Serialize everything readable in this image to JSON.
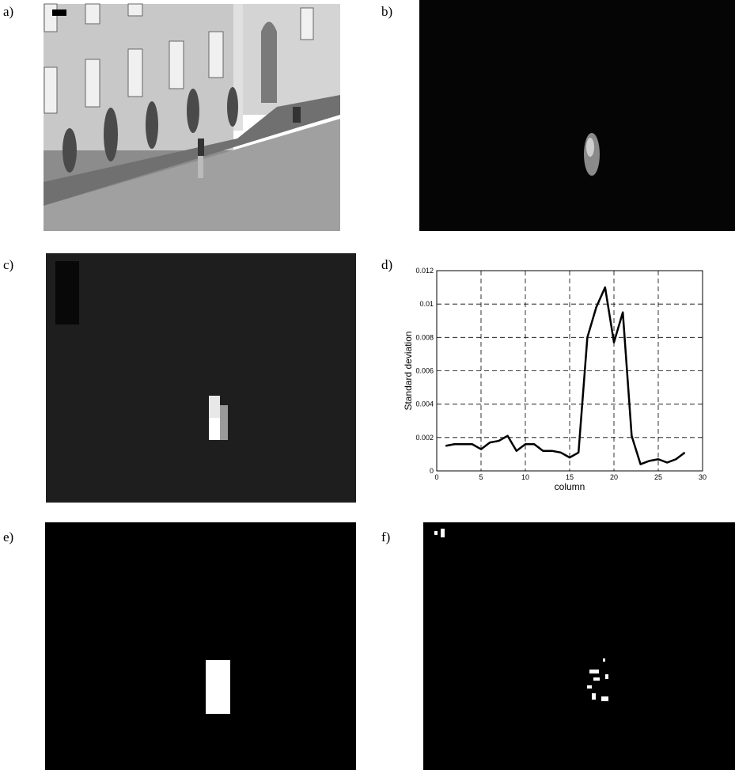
{
  "panels": {
    "labels": [
      "a)",
      "b)",
      "c)",
      "d)",
      "e)",
      "f)"
    ]
  },
  "chart_data": {
    "type": "line",
    "xlabel": "column",
    "ylabel": "Standard deviation",
    "x": [
      1,
      2,
      3,
      4,
      5,
      6,
      7,
      8,
      9,
      10,
      11,
      12,
      13,
      14,
      15,
      16,
      17,
      18,
      19,
      20,
      21,
      22,
      23,
      24,
      25,
      26,
      27,
      28
    ],
    "series": [
      {
        "name": null,
        "color": "#000000",
        "values": [
          0.0015,
          0.0016,
          0.0016,
          0.0016,
          0.0013,
          0.0017,
          0.0018,
          0.0021,
          0.0012,
          0.0016,
          0.0016,
          0.0012,
          0.0012,
          0.0011,
          0.0008,
          0.0011,
          0.008,
          0.0098,
          0.011,
          0.0077,
          0.0095,
          0.0021,
          0.0004,
          0.0006,
          0.0007,
          0.0005,
          0.0007,
          0.0011
        ]
      }
    ],
    "xlim": [
      0,
      30
    ],
    "xticks": [
      0,
      5,
      10,
      15,
      20,
      25,
      30
    ],
    "ylim": [
      0,
      0.012
    ],
    "yticks": [
      0,
      0.002,
      0.004,
      0.006,
      0.008,
      0.01,
      0.012
    ],
    "grid": true
  }
}
